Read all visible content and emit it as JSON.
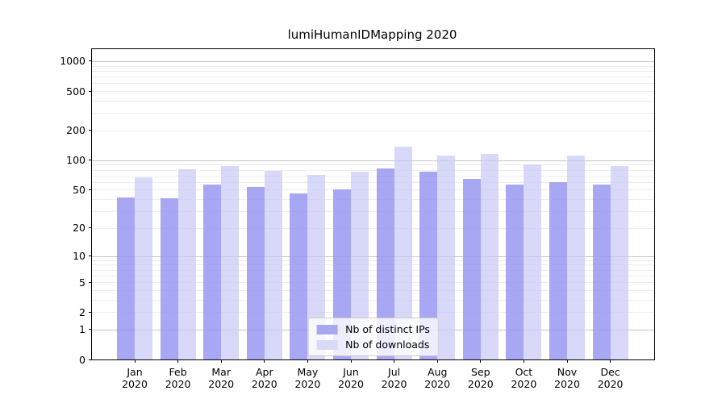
{
  "chart_data": {
    "type": "bar",
    "title": "lumiHumanIDMapping 2020",
    "x_axis": {
      "categories": [
        "Jan",
        "Feb",
        "Mar",
        "Apr",
        "May",
        "Jun",
        "Jul",
        "Aug",
        "Sep",
        "Oct",
        "Nov",
        "Dec"
      ],
      "year_label": "2020"
    },
    "y_axis": {
      "scale": "log10(value+1)",
      "ticks": [
        0,
        1,
        2,
        5,
        10,
        20,
        50,
        100,
        200,
        500,
        1000
      ],
      "decades": 3,
      "major_gridlines_at": [
        1,
        10,
        100,
        1000
      ]
    },
    "series": [
      {
        "name": "Nb of distinct IPs",
        "key": "distinct-ips",
        "fill": "rgba(145,145,240,0.8)",
        "legend_color": "#a8a8f1",
        "values": [
          42,
          41,
          57,
          53,
          46,
          50,
          82,
          77,
          64,
          56,
          60,
          56
        ]
      },
      {
        "name": "Nb of downloads",
        "key": "downloads",
        "fill": "rgba(200,200,245,0.7)",
        "legend_color": "#d9d9f8",
        "values": [
          67,
          81,
          87,
          78,
          71,
          77,
          137,
          112,
          117,
          91,
          112,
          87
        ]
      }
    ],
    "grid": {
      "on": true,
      "minor_color": "#ededed",
      "major_color": "#c6c6c6"
    },
    "legend_position": "lower center"
  },
  "colors": {
    "background": "#ffffff",
    "spine": "#000000",
    "text": "#000000",
    "legend_border": "#cccccc"
  }
}
